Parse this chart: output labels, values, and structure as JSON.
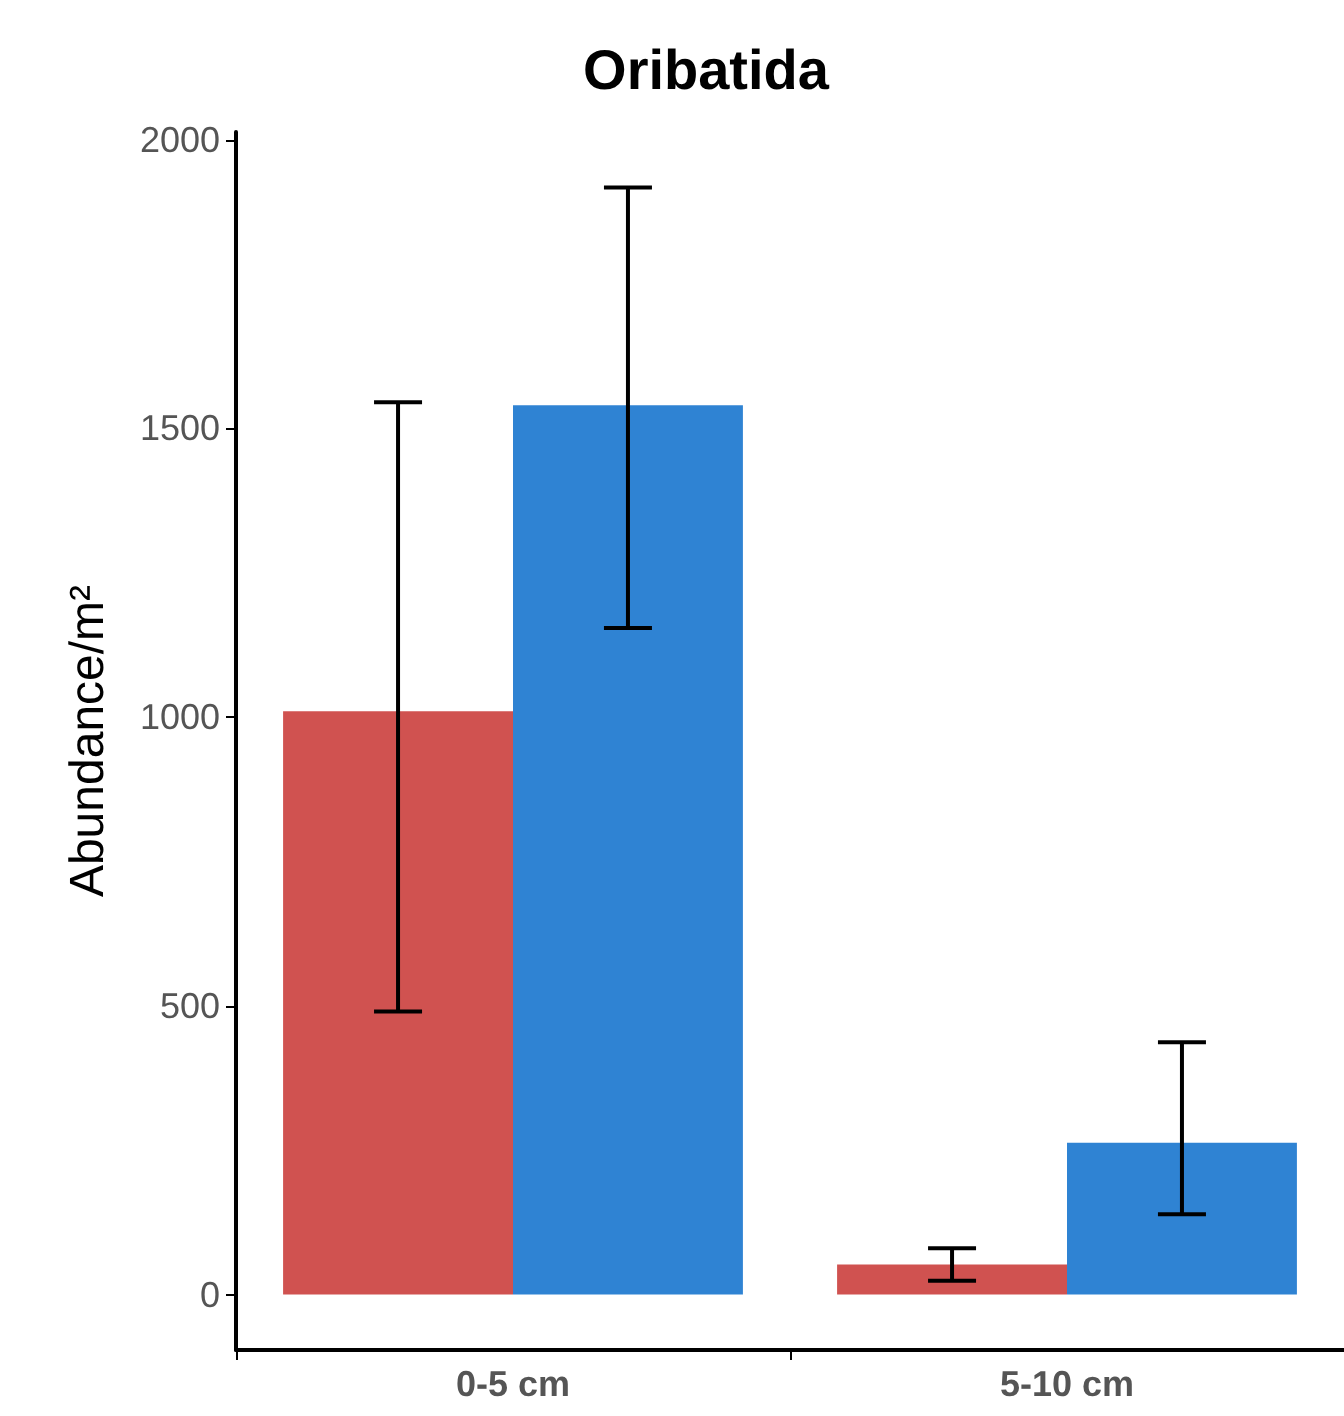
{
  "chart_data": {
    "type": "bar",
    "title": "Oribatida",
    "ylabel": "Abundance/m²",
    "categories": [
      "0-5 cm",
      "5-10 cm"
    ],
    "series": [
      {
        "color": "#d05250",
        "values": [
          1010,
          52
        ],
        "errors": [
          [
            490,
            1545
          ],
          [
            24,
            80
          ]
        ]
      },
      {
        "color": "#2f83d3",
        "values": [
          1540,
          263
        ],
        "errors": [
          [
            1154,
            1917
          ],
          [
            139,
            437
          ]
        ]
      }
    ],
    "ylim": [
      -96,
      2013
    ],
    "yticks": [
      0,
      500,
      1000,
      1500,
      2000
    ],
    "grid": false
  }
}
